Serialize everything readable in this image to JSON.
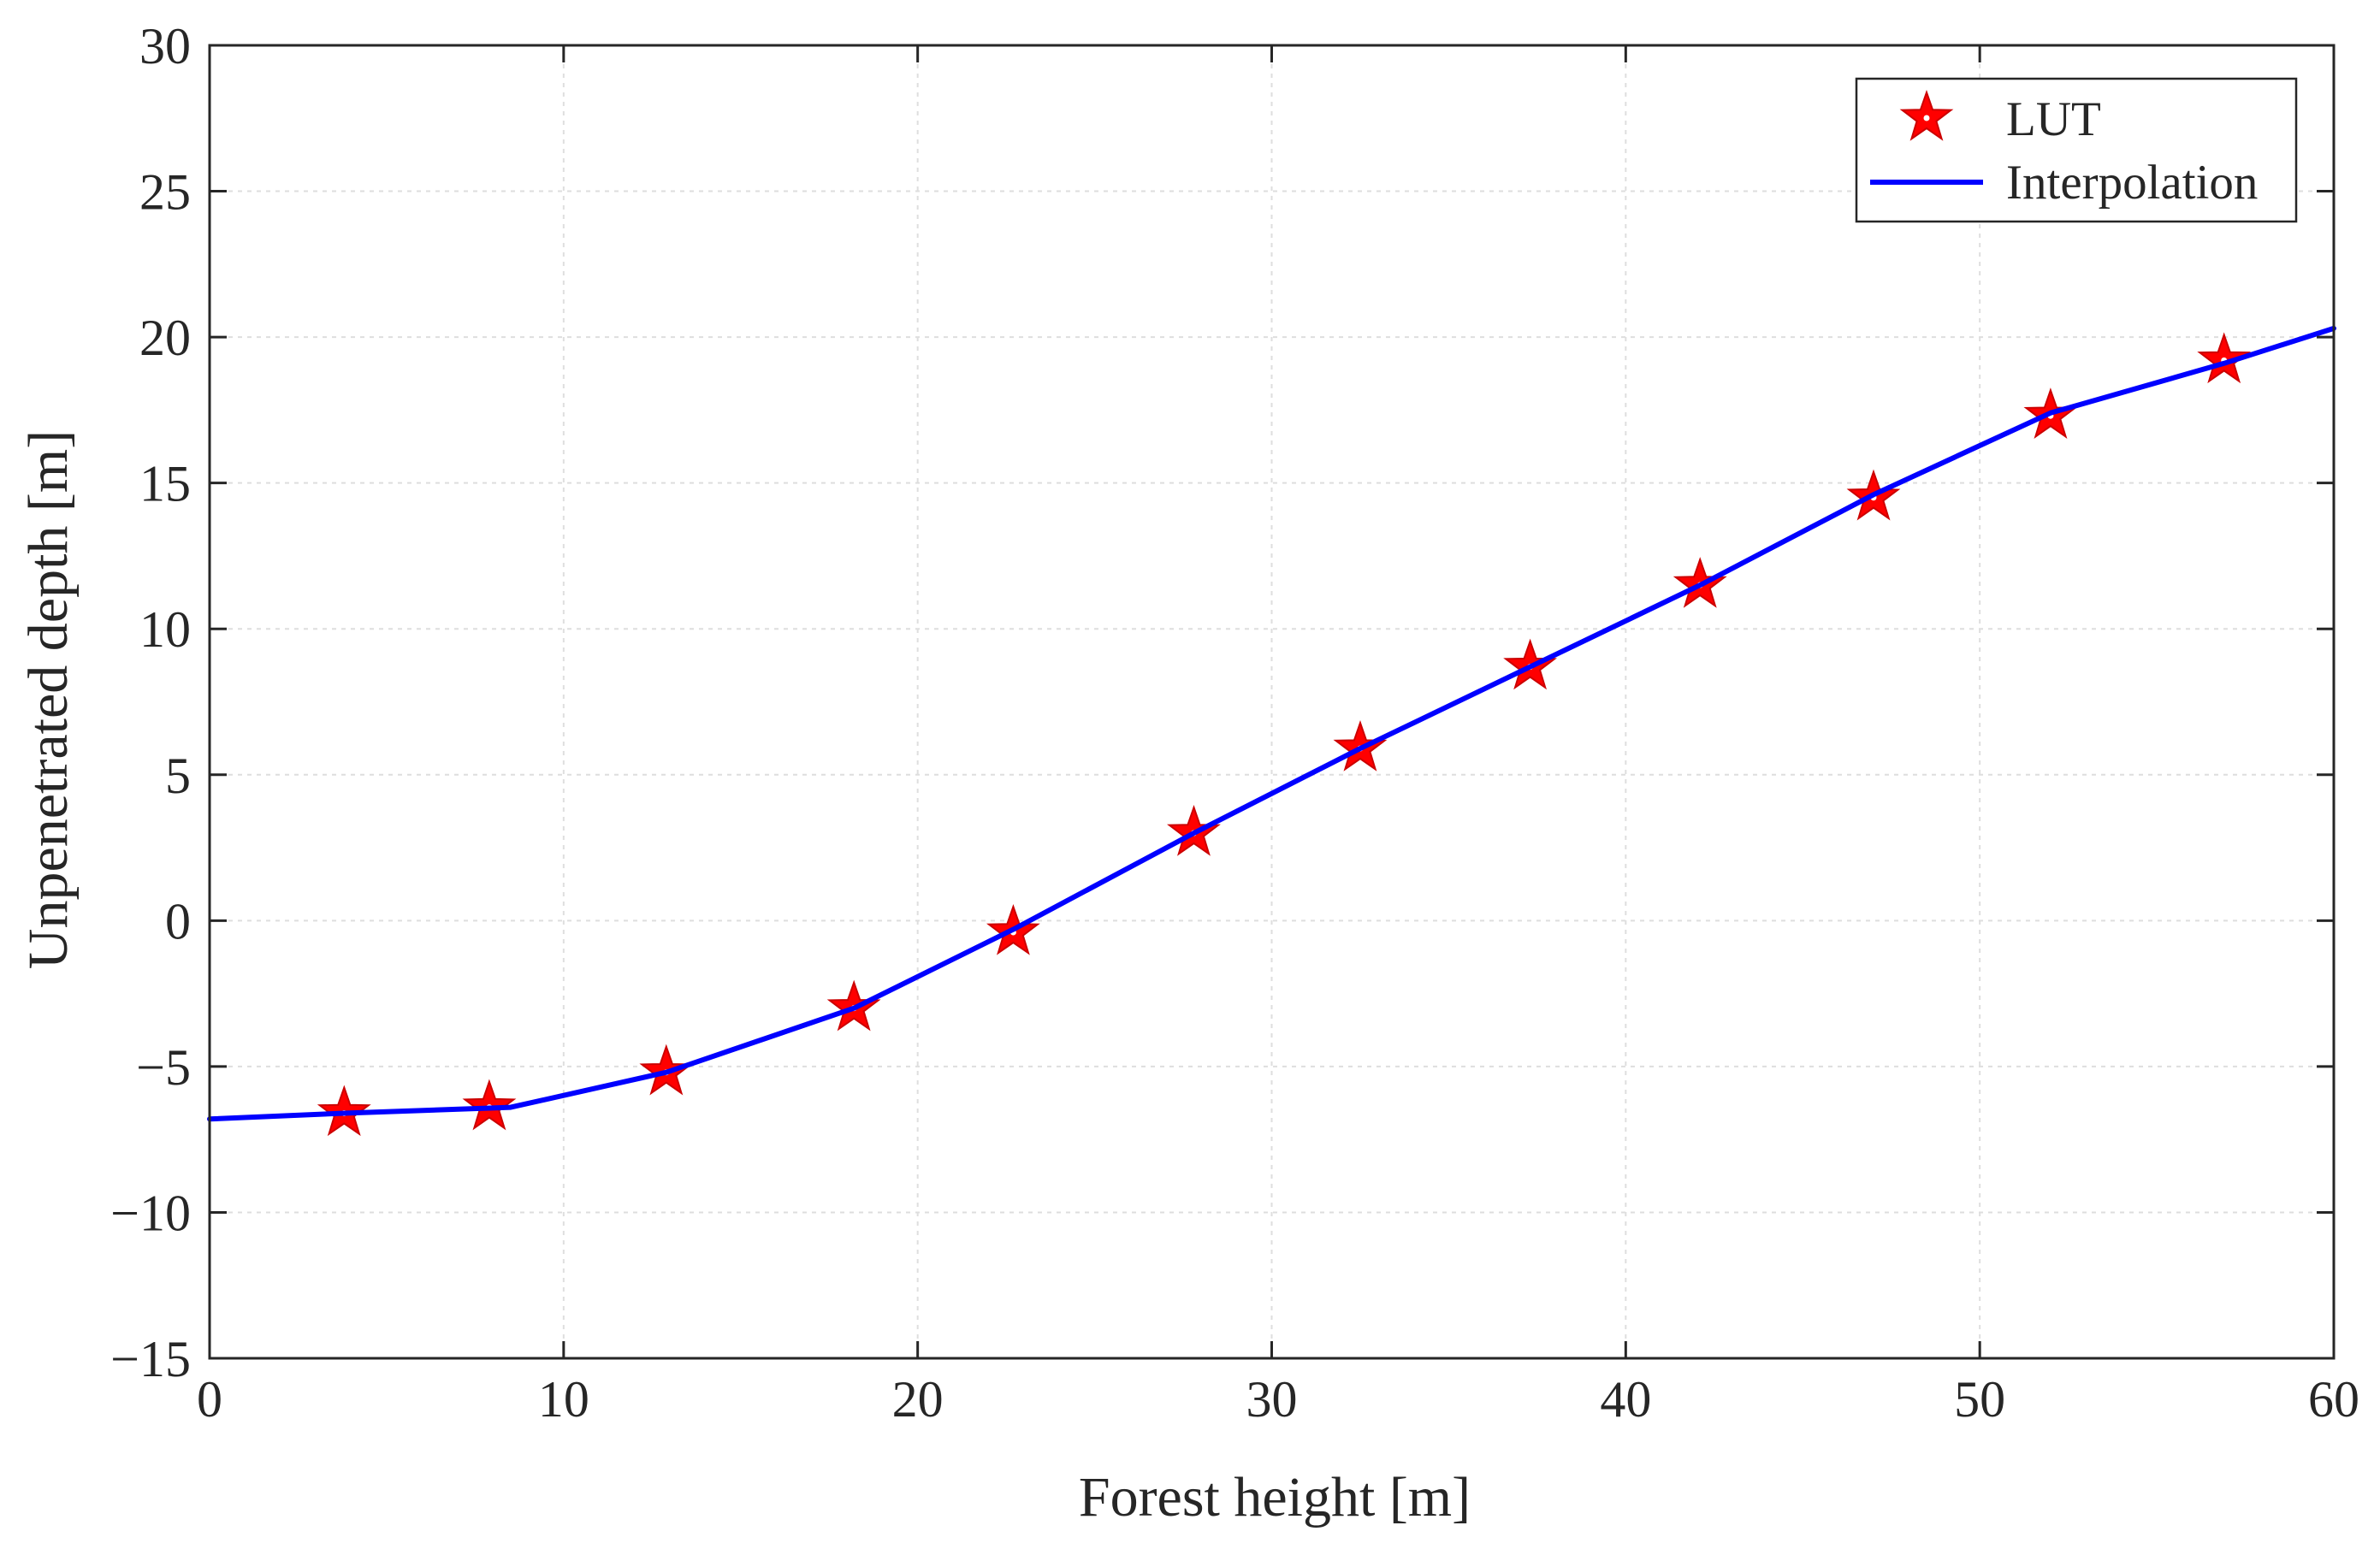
{
  "chart_data": {
    "type": "line",
    "title": "",
    "xlabel": "Forest height [m]",
    "ylabel": "Unpenetrated depth [m]",
    "xlim": [
      0,
      60
    ],
    "ylim": [
      -15,
      30
    ],
    "xticks": [
      0,
      10,
      20,
      30,
      40,
      50,
      60
    ],
    "yticks": [
      -15,
      -10,
      -5,
      0,
      5,
      10,
      15,
      20,
      25,
      30
    ],
    "xtick_labels": [
      "0",
      "10",
      "20",
      "30",
      "40",
      "50",
      "60"
    ],
    "ytick_labels": [
      "−15",
      "−10",
      "−5",
      "0",
      "5",
      "10",
      "15",
      "20",
      "25",
      "30"
    ],
    "grid": true,
    "legend_position": "top-right",
    "series": [
      {
        "name": "LUT",
        "style": "markers",
        "marker": "star",
        "color": "#ff0000",
        "x": [
          3.8,
          7.9,
          12.9,
          18.2,
          22.7,
          27.8,
          32.5,
          37.3,
          42.1,
          47.0,
          52.0,
          56.9
        ],
        "y": [
          -6.6,
          -6.4,
          -5.2,
          -3.0,
          -0.4,
          3.0,
          5.9,
          8.7,
          11.5,
          14.5,
          17.3,
          19.2
        ]
      },
      {
        "name": "Interpolation",
        "style": "line",
        "color": "#0000ff",
        "x": [
          0,
          3.8,
          8.5,
          12.9,
          18.2,
          22.7,
          27.8,
          32.5,
          37.3,
          42.1,
          47.0,
          52.0,
          56.9,
          60
        ],
        "y": [
          -6.8,
          -6.6,
          -6.4,
          -5.2,
          -3.0,
          -0.3,
          3.0,
          5.9,
          8.7,
          11.5,
          14.6,
          17.4,
          19.1,
          20.3
        ]
      }
    ]
  }
}
